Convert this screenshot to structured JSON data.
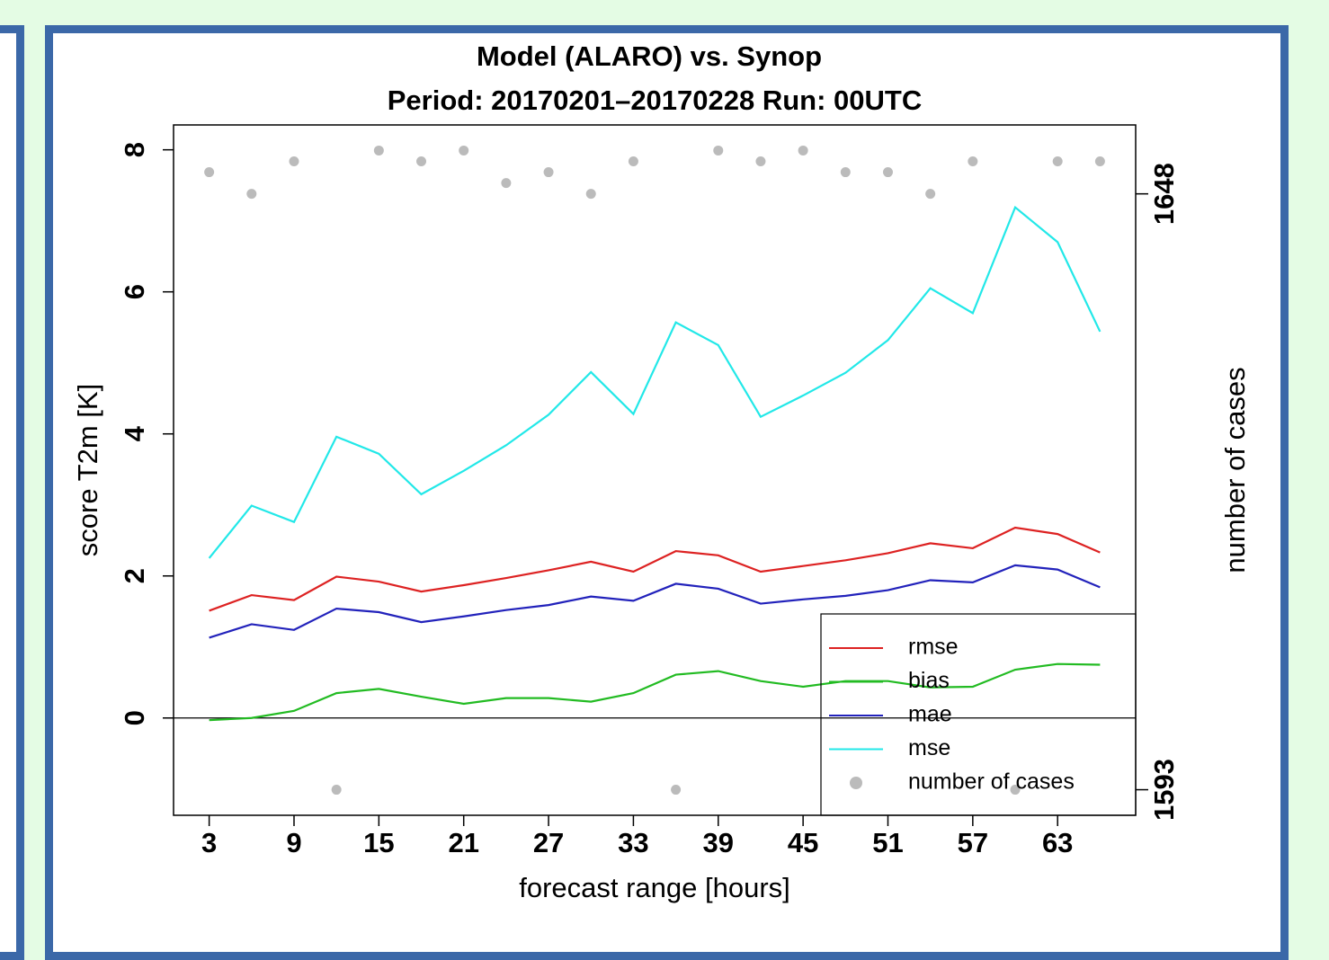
{
  "chart_data": {
    "type": "line",
    "title": "Model (ALARO) vs. Synop",
    "subtitle": "Period: 20170201–20170228 Run: 00UTC",
    "x_label": "forecast range [hours]",
    "y_label": "score T2m [K]",
    "y2_label": "number of cases",
    "x": [
      3,
      6,
      9,
      12,
      15,
      18,
      21,
      24,
      27,
      30,
      33,
      36,
      39,
      42,
      45,
      48,
      51,
      54,
      57,
      60,
      63,
      66
    ],
    "xlim": [
      0.48,
      68.52
    ],
    "xticks": [
      3,
      9,
      15,
      21,
      27,
      33,
      39,
      45,
      51,
      57,
      63
    ],
    "ylim": [
      -1.37,
      8.35
    ],
    "yticks": [
      0,
      2,
      4,
      6,
      8
    ],
    "y2lim": [
      1590.64,
      1654.36
    ],
    "y2ticks": [
      1593,
      1648
    ],
    "zero_line": true,
    "series": [
      {
        "name": "rmse",
        "color": "#dd2222",
        "values": [
          1.51,
          1.73,
          1.66,
          1.99,
          1.92,
          1.78,
          1.87,
          1.97,
          2.08,
          2.2,
          2.06,
          2.35,
          2.29,
          2.06,
          2.14,
          2.22,
          2.32,
          2.46,
          2.39,
          2.68,
          2.59,
          2.33
        ]
      },
      {
        "name": "bias",
        "color": "#22bb22",
        "values": [
          -0.03,
          0.0,
          0.1,
          0.35,
          0.41,
          0.3,
          0.2,
          0.28,
          0.28,
          0.23,
          0.35,
          0.61,
          0.66,
          0.52,
          0.44,
          0.52,
          0.52,
          0.43,
          0.44,
          0.68,
          0.76,
          0.75
        ]
      },
      {
        "name": "mae",
        "color": "#2222bb",
        "values": [
          1.13,
          1.32,
          1.24,
          1.54,
          1.49,
          1.35,
          1.43,
          1.52,
          1.59,
          1.71,
          1.65,
          1.89,
          1.82,
          1.61,
          1.67,
          1.72,
          1.8,
          1.94,
          1.91,
          2.15,
          2.09,
          1.84
        ]
      },
      {
        "name": "mse",
        "color": "#22e8e8",
        "values": [
          2.25,
          2.99,
          2.76,
          3.96,
          3.72,
          3.15,
          3.48,
          3.84,
          4.27,
          4.87,
          4.28,
          5.57,
          5.25,
          4.24,
          4.54,
          4.86,
          5.32,
          6.05,
          5.7,
          7.19,
          6.7,
          5.44
        ]
      },
      {
        "name": "number of cases",
        "color": "#bbbbbb",
        "axis": "y2",
        "style": "points",
        "values": [
          1650,
          1648,
          1651,
          1593,
          1652,
          1651,
          1652,
          1649,
          1650,
          1648,
          1651,
          1593,
          1652,
          1651,
          1652,
          1650,
          1650,
          1648,
          1651,
          1593,
          1651,
          1651
        ]
      }
    ]
  }
}
